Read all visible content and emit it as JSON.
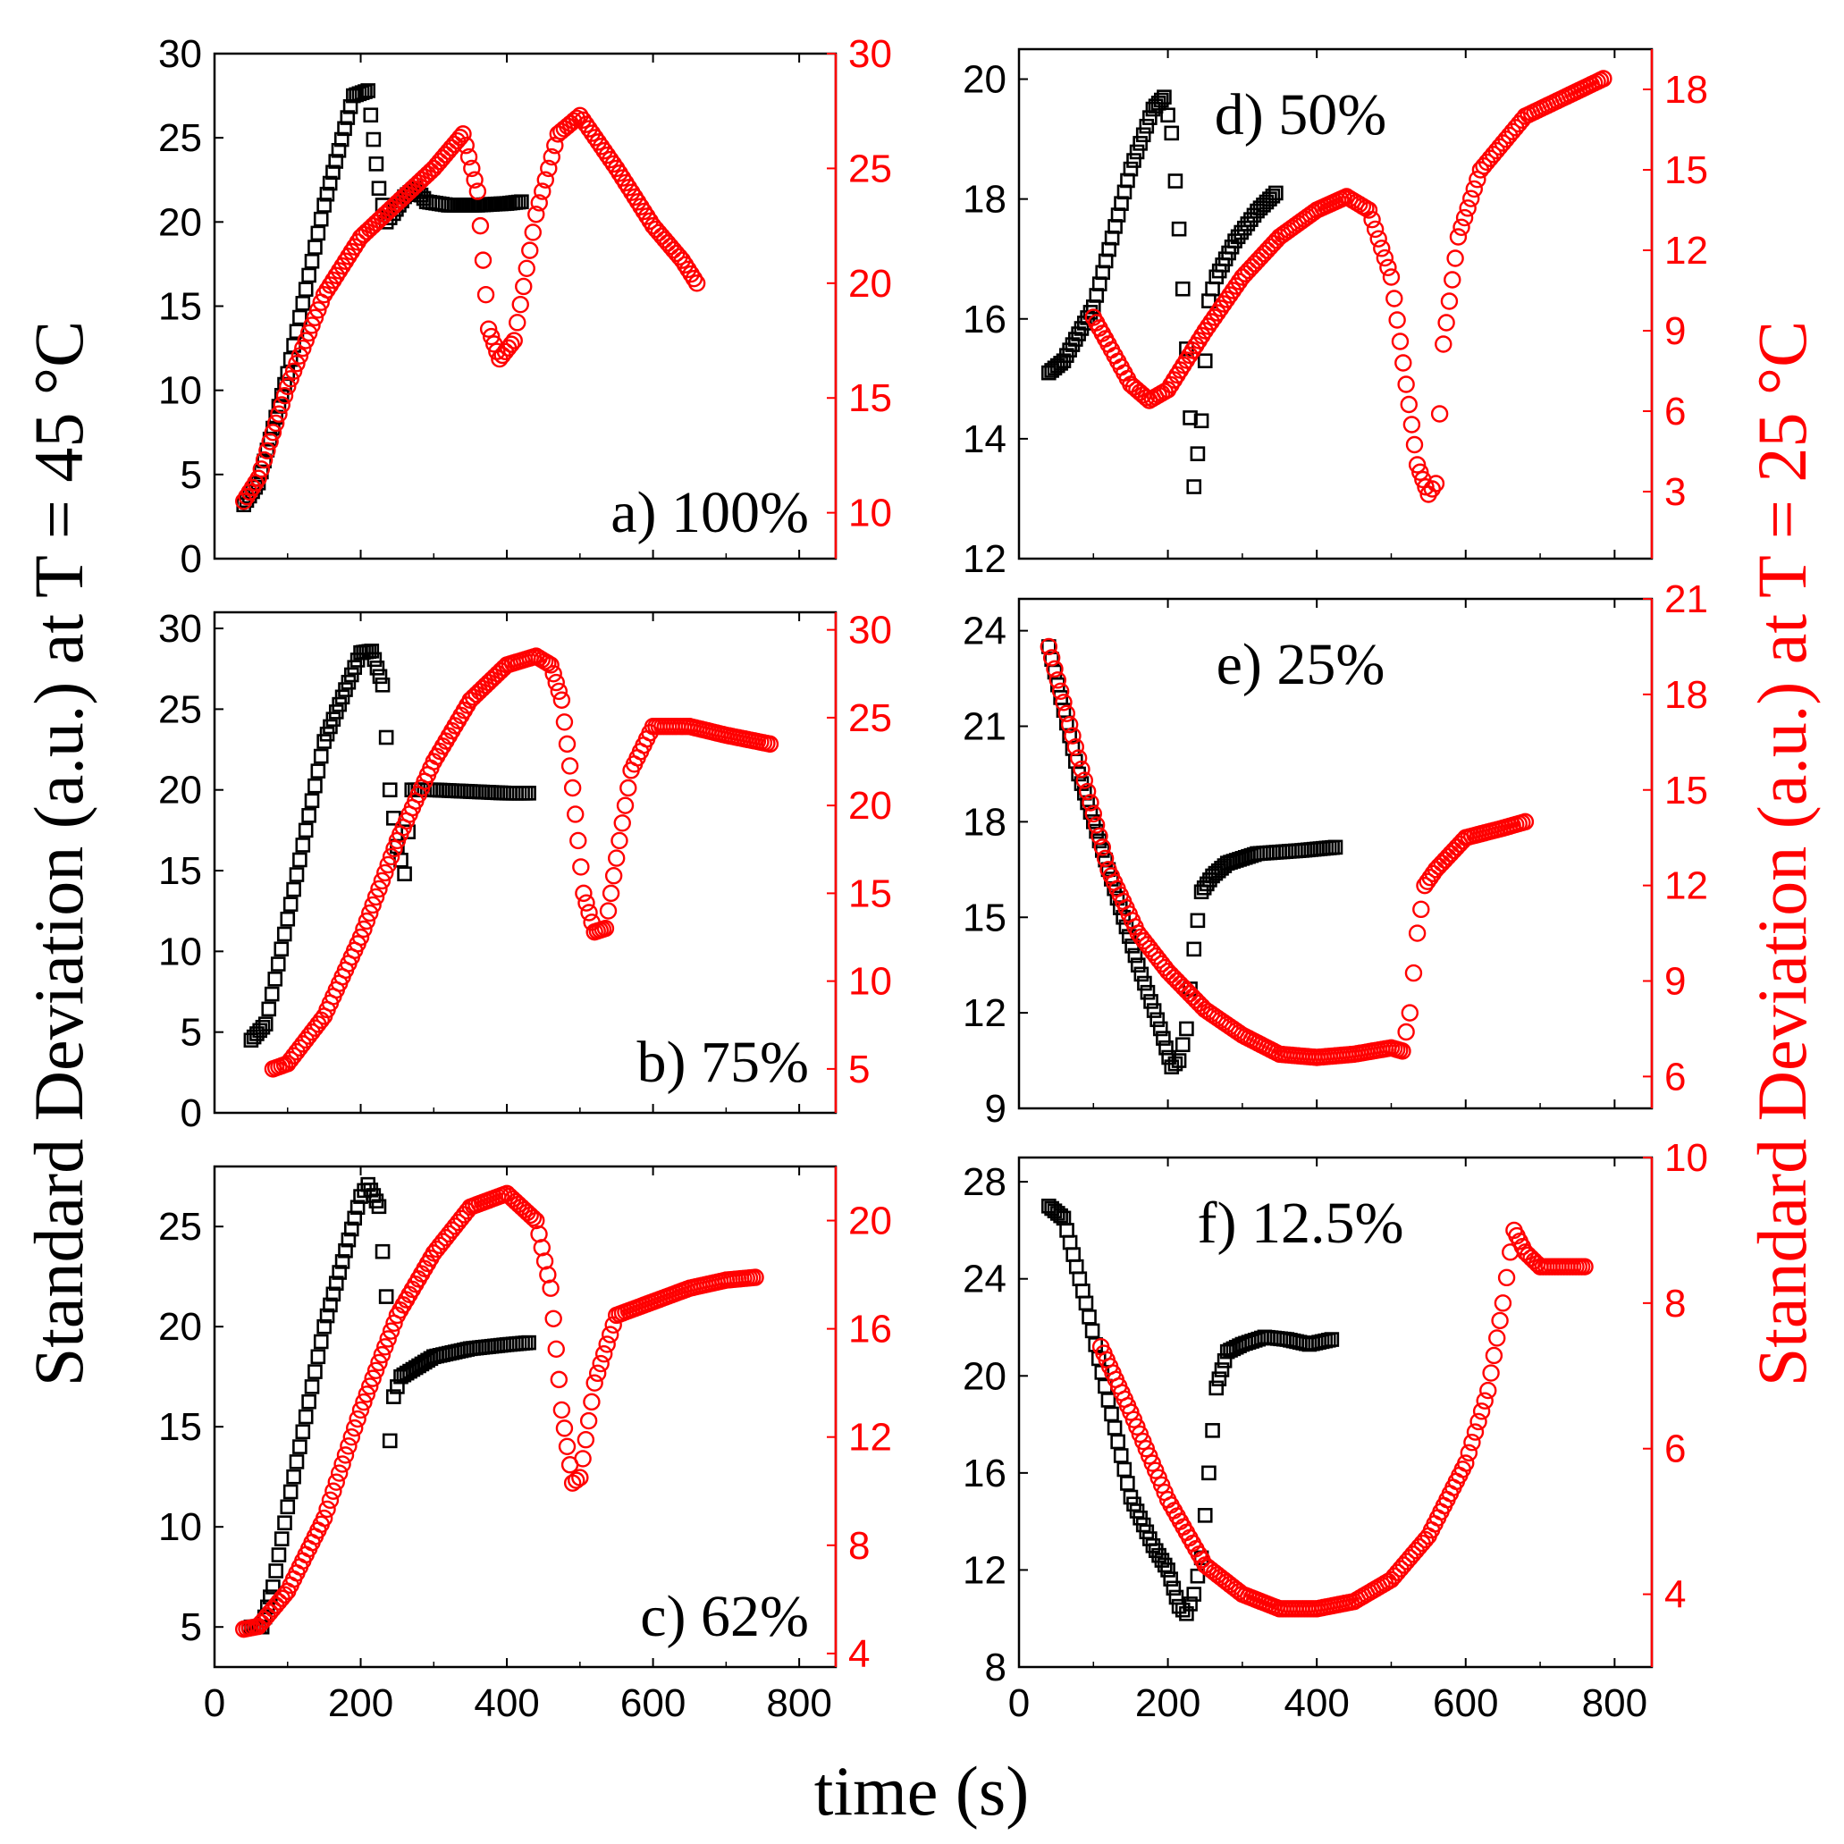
{
  "figure": {
    "xlabel": "time (s)",
    "ylabel_left": "Standard Deviation (a.u.) at T = 45 °C",
    "ylabel_right": "Standard Deviation (a.u.) at T = 25 °C",
    "colors": {
      "left_series": "#000000",
      "right_series": "#ff0000"
    }
  },
  "chart_data": [
    {
      "type": "scatter",
      "panel": "a",
      "title": "a) 100%",
      "xlim": [
        0,
        850
      ],
      "xticks": [
        0,
        200,
        400,
        600,
        800
      ],
      "ylim_left": [
        0,
        30
      ],
      "yticks_left": [
        0,
        5,
        10,
        15,
        20,
        25,
        30
      ],
      "ylim_right": [
        8,
        30
      ],
      "yticks_right": [
        10,
        15,
        20,
        25,
        30
      ],
      "series": [
        {
          "name": "T = 45 °C",
          "axis": "left",
          "marker": "square",
          "x": [
            40,
            60,
            100,
            150,
            190,
            210,
            225,
            235,
            245,
            260,
            275,
            290,
            320,
            360,
            400,
            420
          ],
          "y": [
            3.2,
            4.5,
            11,
            21,
            27.5,
            27.8,
            22,
            20,
            20.5,
            21.5,
            22,
            21.2,
            21,
            21,
            21.1,
            21.2
          ]
        },
        {
          "name": "T = 25 °C",
          "axis": "right",
          "marker": "circle",
          "x": [
            40,
            60,
            100,
            150,
            200,
            250,
            300,
            340,
            360,
            375,
            390,
            410,
            440,
            470,
            500,
            550,
            600,
            640,
            660
          ],
          "y": [
            10.5,
            11.5,
            15.5,
            19.5,
            22,
            23.5,
            25,
            26.5,
            24,
            18,
            16.7,
            17.5,
            23,
            26.5,
            27.3,
            25,
            22.5,
            21,
            20
          ]
        }
      ]
    },
    {
      "type": "scatter",
      "panel": "b",
      "title": "b) 75%",
      "xlim": [
        0,
        850
      ],
      "xticks": [
        0,
        200,
        400,
        600,
        800
      ],
      "ylim_left": [
        0,
        31
      ],
      "yticks_left": [
        0,
        5,
        10,
        15,
        20,
        25,
        30
      ],
      "ylim_right": [
        2.5,
        31
      ],
      "yticks_right": [
        5,
        10,
        15,
        20,
        25,
        30
      ],
      "series": [
        {
          "name": "T = 45 °C",
          "axis": "left",
          "marker": "square",
          "x": [
            50,
            70,
            100,
            150,
            200,
            215,
            230,
            240,
            250,
            260,
            270,
            300,
            350,
            400,
            430
          ],
          "y": [
            4.5,
            5.5,
            12,
            23,
            28.5,
            28.6,
            26.5,
            20,
            16.5,
            14.8,
            20,
            20,
            19.9,
            19.8,
            19.8
          ]
        },
        {
          "name": "T = 25 °C",
          "axis": "right",
          "marker": "circle",
          "x": [
            80,
            100,
            150,
            200,
            250,
            300,
            350,
            400,
            440,
            460,
            475,
            490,
            505,
            520,
            535,
            550,
            570,
            600,
            650,
            700,
            760
          ],
          "y": [
            5,
            5.3,
            8,
            12.5,
            18,
            22.5,
            26,
            28,
            28.5,
            28,
            26,
            21,
            15,
            12.8,
            13,
            17,
            22,
            24.5,
            24.5,
            24,
            23.5
          ]
        }
      ]
    },
    {
      "type": "scatter",
      "panel": "c",
      "title": "c) 62%",
      "xlim": [
        0,
        850
      ],
      "xticks": [
        0,
        200,
        400,
        600,
        800
      ],
      "ylim_left": [
        3,
        28
      ],
      "yticks_left": [
        5,
        10,
        15,
        20,
        25
      ],
      "ylim_right": [
        3.5,
        22
      ],
      "yticks_right": [
        4,
        8,
        12,
        16,
        20
      ],
      "series": [
        {
          "name": "T = 45 °C",
          "axis": "left",
          "marker": "square",
          "x": [
            50,
            65,
            80,
            100,
            150,
            200,
            210,
            225,
            235,
            240,
            245,
            255,
            300,
            350,
            400,
            430
          ],
          "y": [
            5,
            5,
            7,
            11,
            20,
            26.5,
            27.1,
            26,
            21.5,
            14.3,
            16.5,
            17.5,
            18.5,
            18.9,
            19.1,
            19.2
          ]
        },
        {
          "name": "T = 25 °C",
          "axis": "right",
          "marker": "circle",
          "x": [
            40,
            60,
            100,
            150,
            200,
            250,
            300,
            350,
            400,
            440,
            460,
            475,
            490,
            500,
            520,
            550,
            600,
            650,
            700,
            740
          ],
          "y": [
            4.9,
            5,
            6.3,
            9,
            13,
            16.5,
            18.8,
            20.5,
            21,
            20,
            17.5,
            13,
            10.3,
            10.5,
            14,
            16.5,
            17,
            17.5,
            17.8,
            17.9
          ]
        }
      ]
    },
    {
      "type": "scatter",
      "panel": "d",
      "title": "d) 50%",
      "xlim": [
        0,
        850
      ],
      "xticks": [
        0,
        200,
        400,
        600,
        800
      ],
      "ylim_left": [
        12,
        20.5
      ],
      "yticks_left": [
        12,
        14,
        16,
        18,
        20
      ],
      "ylim_right": [
        0.5,
        19.5
      ],
      "yticks_right": [
        3,
        6,
        9,
        12,
        15,
        18
      ],
      "series": [
        {
          "name": "T = 45 °C",
          "axis": "left",
          "marker": "square",
          "x": [
            40,
            60,
            100,
            150,
            180,
            195,
            205,
            215,
            225,
            235,
            245,
            255,
            265,
            290,
            320,
            345
          ],
          "y": [
            15.1,
            15.3,
            16.2,
            18.5,
            19.5,
            19.7,
            19.1,
            17.5,
            15.5,
            13.2,
            14.3,
            16.3,
            16.7,
            17.3,
            17.8,
            18.1
          ]
        },
        {
          "name": "T = 25 °C",
          "axis": "right",
          "marker": "circle",
          "x": [
            100,
            120,
            150,
            175,
            200,
            250,
            300,
            350,
            400,
            440,
            470,
            500,
            520,
            535,
            550,
            560,
            570,
            590,
            620,
            680,
            740,
            785
          ],
          "y": [
            9.5,
            8.5,
            7,
            6.4,
            6.8,
            9,
            11,
            12.5,
            13.5,
            14,
            13.5,
            11,
            7,
            4,
            2.9,
            3.3,
            8.5,
            12.5,
            15,
            17,
            17.8,
            18.4
          ]
        }
      ]
    },
    {
      "type": "scatter",
      "panel": "e",
      "title": "e) 25%",
      "xlim": [
        0,
        850
      ],
      "xticks": [
        0,
        200,
        400,
        600,
        800
      ],
      "ylim_left": [
        9,
        25
      ],
      "yticks_left": [
        9,
        12,
        15,
        18,
        21,
        24
      ],
      "ylim_right": [
        5,
        21
      ],
      "yticks_right": [
        6,
        9,
        12,
        15,
        18,
        21
      ],
      "series": [
        {
          "name": "T = 45 °C",
          "axis": "left",
          "marker": "square",
          "x": [
            40,
            80,
            120,
            160,
            190,
            205,
            215,
            225,
            235,
            245,
            260,
            280,
            320,
            380,
            425
          ],
          "y": [
            23.5,
            19.5,
            16.5,
            13.5,
            11.5,
            10.3,
            10.5,
            11.5,
            14,
            15.8,
            16.3,
            16.7,
            17,
            17.1,
            17.2
          ]
        },
        {
          "name": "T = 25 °C",
          "axis": "right",
          "marker": "circle",
          "x": [
            40,
            80,
            120,
            160,
            200,
            250,
            300,
            350,
            400,
            450,
            500,
            515,
            525,
            535,
            545,
            560,
            600,
            650,
            680
          ],
          "y": [
            19.5,
            16,
            12.5,
            10.5,
            9.3,
            8.1,
            7.3,
            6.7,
            6.6,
            6.7,
            6.9,
            6.8,
            8,
            10.5,
            12,
            12.5,
            13.5,
            13.8,
            14
          ]
        }
      ]
    },
    {
      "type": "scatter",
      "panel": "f",
      "title": "f) 12.5%",
      "xlim": [
        0,
        850
      ],
      "xticks": [
        0,
        200,
        400,
        600,
        800
      ],
      "ylim_left": [
        8,
        29
      ],
      "yticks_left": [
        8,
        12,
        16,
        20,
        24,
        28
      ],
      "ylim_right": [
        3,
        10
      ],
      "yticks_right": [
        4,
        6,
        8,
        10
      ],
      "series": [
        {
          "name": "T = 45 °C",
          "axis": "left",
          "marker": "square",
          "x": [
            40,
            60,
            90,
            120,
            150,
            180,
            200,
            215,
            225,
            235,
            245,
            255,
            265,
            280,
            300,
            330,
            360,
            390,
            420
          ],
          "y": [
            27,
            26.5,
            23,
            19,
            15,
            13,
            12,
            10.5,
            10.2,
            11,
            12.5,
            16,
            19.5,
            21,
            21.3,
            21.6,
            21.5,
            21.3,
            21.5
          ]
        },
        {
          "name": "T = 25 °C",
          "axis": "right",
          "marker": "circle",
          "x": [
            110,
            150,
            200,
            250,
            300,
            350,
            400,
            450,
            500,
            550,
            600,
            630,
            650,
            660,
            665,
            680,
            700,
            720,
            740,
            760
          ],
          "y": [
            7.4,
            6.5,
            5.3,
            4.4,
            4,
            3.8,
            3.8,
            3.9,
            4.2,
            4.8,
            5.8,
            6.8,
            8,
            8.7,
            9,
            8.7,
            8.5,
            8.5,
            8.5,
            8.5
          ]
        }
      ]
    }
  ]
}
